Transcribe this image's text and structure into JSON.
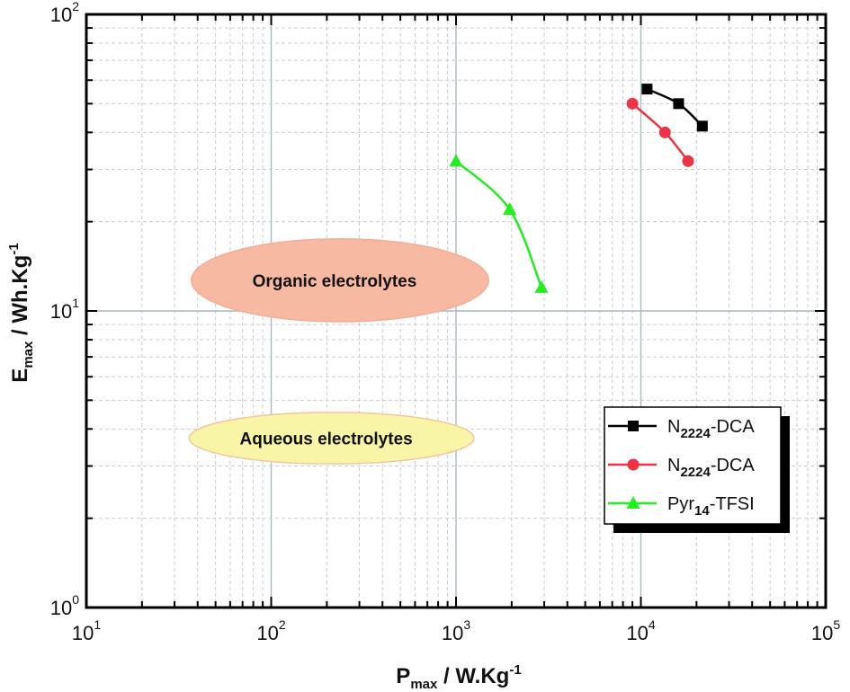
{
  "chart_data": {
    "type": "scatter",
    "x_scale": "log",
    "y_scale": "log",
    "xlabel": {
      "main": "P",
      "sub": "max",
      "rest": " / W.Kg",
      "sup": "-1"
    },
    "ylabel": {
      "main": "E",
      "sub": "max",
      "rest": " / Wh.Kg",
      "sup": "-1"
    },
    "xlim": [
      10,
      100000
    ],
    "ylim": [
      1,
      100
    ],
    "x_ticks": [
      {
        "base": "10",
        "exp": "1",
        "value": 10
      },
      {
        "base": "10",
        "exp": "2",
        "value": 100
      },
      {
        "base": "10",
        "exp": "3",
        "value": 1000
      },
      {
        "base": "10",
        "exp": "4",
        "value": 10000
      },
      {
        "base": "10",
        "exp": "5",
        "value": 100000
      }
    ],
    "y_ticks": [
      {
        "base": "10",
        "exp": "0",
        "value": 1
      },
      {
        "base": "10",
        "exp": "1",
        "value": 10
      },
      {
        "base": "10",
        "exp": "2",
        "value": 100
      }
    ],
    "grid": true,
    "legend_position": "bottom-right",
    "series": [
      {
        "name_main": "N",
        "name_sub": "2224",
        "name_rest": "-DCA",
        "color": "#000000",
        "marker": "square",
        "points": [
          {
            "x": 10800,
            "y": 56
          },
          {
            "x": 16000,
            "y": 50
          },
          {
            "x": 21500,
            "y": 42
          }
        ]
      },
      {
        "name_main": "N",
        "name_sub": "2224",
        "name_rest": "-DCA",
        "color": "#ee3344",
        "marker": "circle",
        "points": [
          {
            "x": 9000,
            "y": 50
          },
          {
            "x": 13500,
            "y": 40
          },
          {
            "x": 18000,
            "y": 32
          }
        ]
      },
      {
        "name_main": "Pyr",
        "name_sub": "14",
        "name_rest": "-TFSI",
        "color": "#22ee22",
        "marker": "triangle",
        "points": [
          {
            "x": 1000,
            "y": 32
          },
          {
            "x": 1950,
            "y": 22
          },
          {
            "x": 2900,
            "y": 12
          }
        ]
      }
    ],
    "regions": [
      {
        "label": "Organic electrolytes",
        "x_range": [
          37,
          1500
        ],
        "y_range": [
          9.2,
          17.5
        ],
        "fill": "#f8b9a2",
        "stroke": "#f2ad95"
      },
      {
        "label": "Aqueous electrolytes",
        "x_range": [
          36,
          1250
        ],
        "y_range": [
          3.05,
          4.55
        ],
        "fill": "#f9f5a6",
        "stroke": "#f1c7a0"
      }
    ]
  }
}
